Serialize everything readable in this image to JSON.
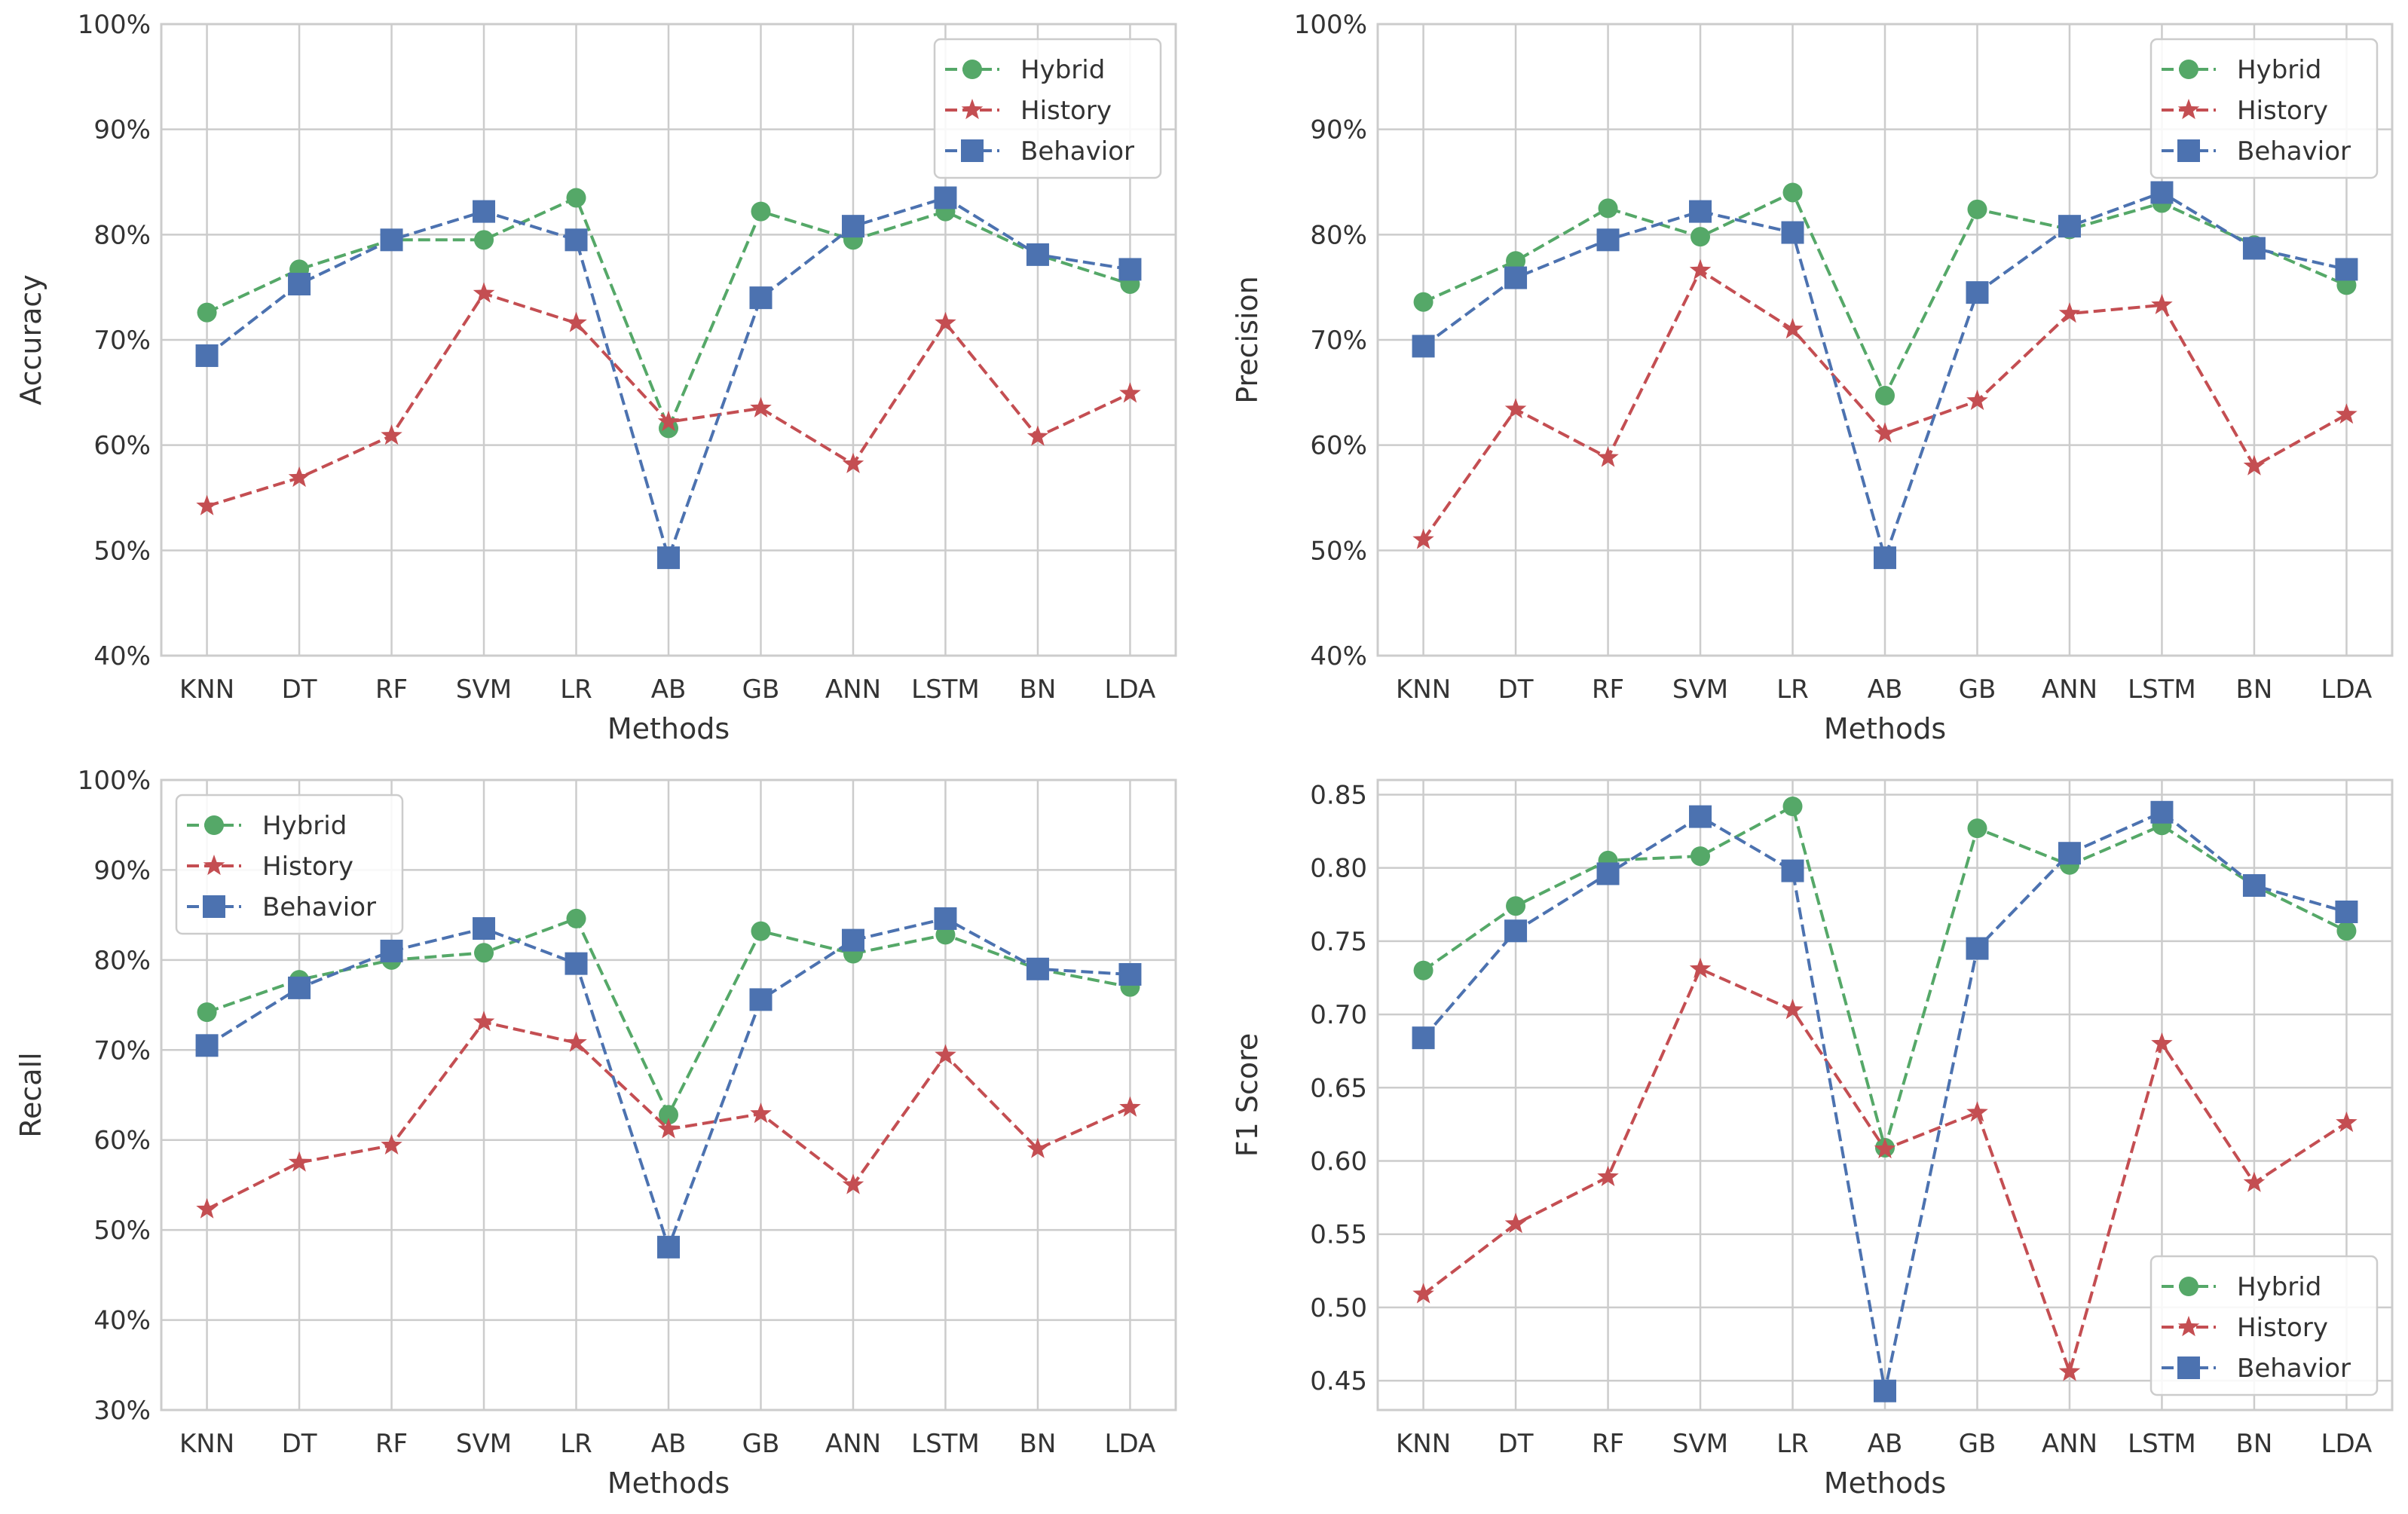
{
  "colors": {
    "hybrid": "#55a868",
    "history": "#c44e52",
    "behavior": "#4c72b0",
    "grid": "#cccccc",
    "frame": "#cccccc",
    "text": "#333333"
  },
  "chart_data": [
    {
      "type": "line",
      "title": "",
      "xlabel": "Methods",
      "ylabel": "Accuracy",
      "categories": [
        "KNN",
        "DT",
        "RF",
        "SVM",
        "LR",
        "AB",
        "GB",
        "ANN",
        "LSTM",
        "BN",
        "LDA"
      ],
      "ylim": [
        0.4,
        1.0
      ],
      "yticks": [
        0.4,
        0.5,
        0.6,
        0.7,
        0.8,
        0.9,
        1.0
      ],
      "ytick_labels": [
        "40%",
        "50%",
        "60%",
        "70%",
        "80%",
        "90%",
        "100%"
      ],
      "legend_position": "top-right",
      "grid": true,
      "series": [
        {
          "name": "Hybrid",
          "marker": "circle",
          "color": "#55a868",
          "values": [
            0.726,
            0.767,
            0.795,
            0.795,
            0.835,
            0.616,
            0.822,
            0.795,
            0.822,
            0.781,
            0.753
          ]
        },
        {
          "name": "History",
          "marker": "star",
          "color": "#c44e52",
          "values": [
            0.542,
            0.569,
            0.609,
            0.744,
            0.716,
            0.622,
            0.635,
            0.582,
            0.716,
            0.608,
            0.649
          ]
        },
        {
          "name": "Behavior",
          "marker": "square",
          "color": "#4c72b0",
          "values": [
            0.685,
            0.753,
            0.795,
            0.822,
            0.795,
            0.493,
            0.74,
            0.808,
            0.835,
            0.781,
            0.767
          ]
        }
      ]
    },
    {
      "type": "line",
      "title": "",
      "xlabel": "Methods",
      "ylabel": "Precision",
      "categories": [
        "KNN",
        "DT",
        "RF",
        "SVM",
        "LR",
        "AB",
        "GB",
        "ANN",
        "LSTM",
        "BN",
        "LDA"
      ],
      "ylim": [
        0.4,
        1.0
      ],
      "yticks": [
        0.4,
        0.5,
        0.6,
        0.7,
        0.8,
        0.9,
        1.0
      ],
      "ytick_labels": [
        "40%",
        "50%",
        "60%",
        "70%",
        "80%",
        "90%",
        "100%"
      ],
      "legend_position": "top-right",
      "grid": true,
      "series": [
        {
          "name": "Hybrid",
          "marker": "circle",
          "color": "#55a868",
          "values": [
            0.736,
            0.775,
            0.825,
            0.798,
            0.84,
            0.647,
            0.824,
            0.805,
            0.83,
            0.79,
            0.752
          ]
        },
        {
          "name": "History",
          "marker": "star",
          "color": "#c44e52",
          "values": [
            0.51,
            0.634,
            0.588,
            0.766,
            0.71,
            0.611,
            0.642,
            0.725,
            0.733,
            0.58,
            0.629
          ]
        },
        {
          "name": "Behavior",
          "marker": "square",
          "color": "#4c72b0",
          "values": [
            0.694,
            0.759,
            0.795,
            0.822,
            0.802,
            0.493,
            0.745,
            0.808,
            0.84,
            0.787,
            0.767
          ]
        }
      ]
    },
    {
      "type": "line",
      "title": "",
      "xlabel": "Methods",
      "ylabel": "Recall",
      "categories": [
        "KNN",
        "DT",
        "RF",
        "SVM",
        "LR",
        "AB",
        "GB",
        "ANN",
        "LSTM",
        "BN",
        "LDA"
      ],
      "ylim": [
        0.3,
        1.0
      ],
      "yticks": [
        0.3,
        0.4,
        0.5,
        0.6,
        0.7,
        0.8,
        0.9,
        1.0
      ],
      "ytick_labels": [
        "30%",
        "40%",
        "50%",
        "60%",
        "70%",
        "80%",
        "90%",
        "100%"
      ],
      "legend_position": "top-left",
      "grid": true,
      "series": [
        {
          "name": "Hybrid",
          "marker": "circle",
          "color": "#55a868",
          "values": [
            0.742,
            0.778,
            0.8,
            0.808,
            0.846,
            0.628,
            0.832,
            0.807,
            0.828,
            0.79,
            0.77
          ]
        },
        {
          "name": "History",
          "marker": "star",
          "color": "#c44e52",
          "values": [
            0.523,
            0.575,
            0.594,
            0.731,
            0.708,
            0.612,
            0.629,
            0.55,
            0.694,
            0.59,
            0.636
          ]
        },
        {
          "name": "Behavior",
          "marker": "square",
          "color": "#4c72b0",
          "values": [
            0.705,
            0.769,
            0.81,
            0.835,
            0.796,
            0.481,
            0.756,
            0.822,
            0.846,
            0.79,
            0.784
          ]
        }
      ]
    },
    {
      "type": "line",
      "title": "",
      "xlabel": "Methods",
      "ylabel": "F1 Score",
      "categories": [
        "KNN",
        "DT",
        "RF",
        "SVM",
        "LR",
        "AB",
        "GB",
        "ANN",
        "LSTM",
        "BN",
        "LDA"
      ],
      "ylim": [
        0.43,
        0.86
      ],
      "yticks": [
        0.45,
        0.5,
        0.55,
        0.6,
        0.65,
        0.7,
        0.75,
        0.8,
        0.85
      ],
      "ytick_labels": [
        "0.45",
        "0.50",
        "0.55",
        "0.60",
        "0.65",
        "0.70",
        "0.75",
        "0.80",
        "0.85"
      ],
      "legend_position": "bottom-right",
      "grid": true,
      "series": [
        {
          "name": "Hybrid",
          "marker": "circle",
          "color": "#55a868",
          "values": [
            0.73,
            0.774,
            0.805,
            0.808,
            0.842,
            0.609,
            0.827,
            0.802,
            0.829,
            0.788,
            0.757
          ]
        },
        {
          "name": "History",
          "marker": "star",
          "color": "#c44e52",
          "values": [
            0.509,
            0.557,
            0.589,
            0.731,
            0.703,
            0.608,
            0.633,
            0.456,
            0.68,
            0.585,
            0.626
          ]
        },
        {
          "name": "Behavior",
          "marker": "square",
          "color": "#4c72b0",
          "values": [
            0.684,
            0.757,
            0.796,
            0.835,
            0.798,
            0.443,
            0.745,
            0.81,
            0.838,
            0.788,
            0.77
          ]
        }
      ]
    }
  ]
}
